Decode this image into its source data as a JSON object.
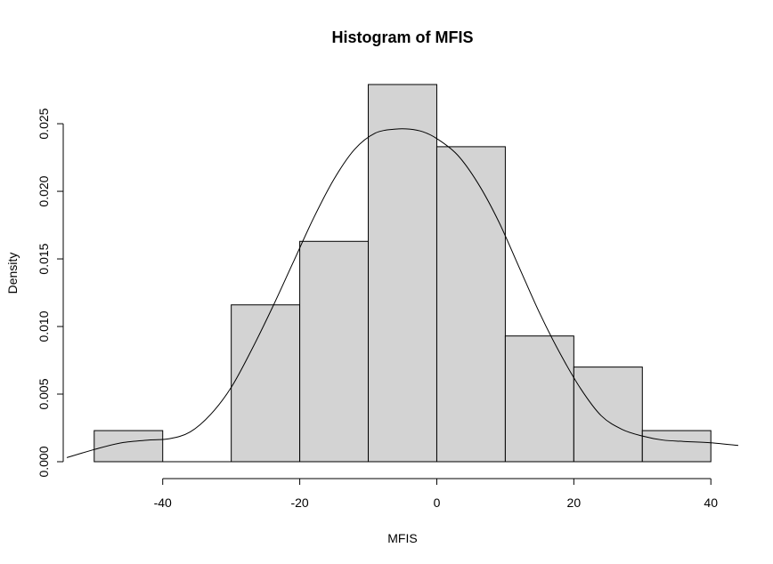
{
  "chart_data": {
    "type": "bar",
    "title": "Histogram of MFIS",
    "xlabel": "MFIS",
    "ylabel": "Density",
    "bins": [
      {
        "start": -50,
        "end": -40,
        "density": 0.0023
      },
      {
        "start": -40,
        "end": -30,
        "density": 0.0
      },
      {
        "start": -30,
        "end": -20,
        "density": 0.0116
      },
      {
        "start": -20,
        "end": -10,
        "density": 0.0163
      },
      {
        "start": -10,
        "end": 0,
        "density": 0.0279
      },
      {
        "start": 0,
        "end": 10,
        "density": 0.0233
      },
      {
        "start": 10,
        "end": 20,
        "density": 0.0093
      },
      {
        "start": 20,
        "end": 30,
        "density": 0.007
      },
      {
        "start": 30,
        "end": 40,
        "density": 0.0023
      }
    ],
    "density_curve": {
      "x": [
        -54,
        -50,
        -46,
        -42,
        -39,
        -36,
        -33,
        -30,
        -27,
        -24,
        -21,
        -18,
        -15,
        -12,
        -9,
        -6,
        -4,
        -2,
        0,
        3,
        6,
        9,
        12,
        15,
        18,
        21,
        24,
        27,
        30,
        33,
        36,
        40,
        44
      ],
      "y": [
        0.0003,
        0.0009,
        0.0014,
        0.0016,
        0.0017,
        0.0022,
        0.0035,
        0.0055,
        0.0083,
        0.0114,
        0.0147,
        0.018,
        0.0209,
        0.0231,
        0.0243,
        0.0246,
        0.0246,
        0.0244,
        0.0239,
        0.0227,
        0.0206,
        0.0178,
        0.0144,
        0.011,
        0.008,
        0.0054,
        0.0034,
        0.0024,
        0.0019,
        0.0016,
        0.0015,
        0.0014,
        0.0012
      ]
    },
    "xlim": [
      -54,
      44
    ],
    "ylim": [
      0,
      0.0279
    ],
    "x_ticks": [
      -40,
      -20,
      0,
      20,
      40
    ],
    "x_tick_labels": [
      "-40",
      "-20",
      "0",
      "20",
      "40"
    ],
    "y_ticks": [
      0.0,
      0.005,
      0.01,
      0.015,
      0.02,
      0.025
    ],
    "y_tick_labels": [
      "0.000",
      "0.005",
      "0.010",
      "0.015",
      "0.020",
      "0.025"
    ],
    "bar_fill": "#d3d3d3",
    "bar_stroke": "#000000",
    "curve_color": "#000000"
  }
}
